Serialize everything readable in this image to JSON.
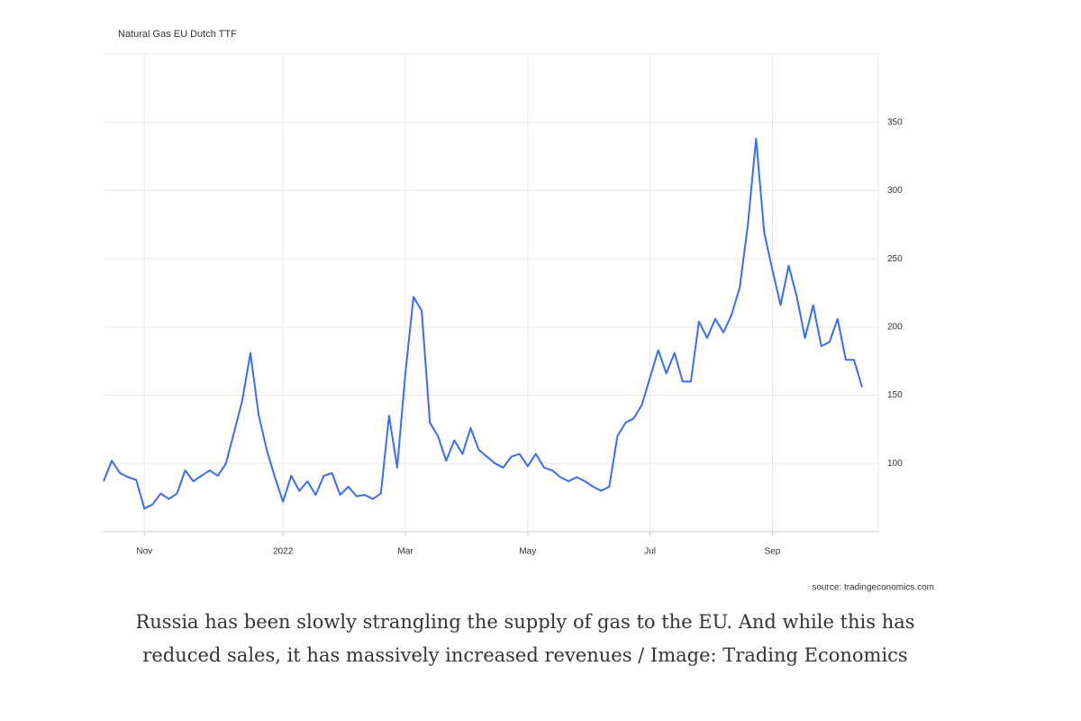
{
  "chart_data": {
    "type": "line",
    "title": "Natural Gas EU Dutch TTF",
    "source": "source: tradingeconomics.com",
    "categories": [
      null,
      null,
      null,
      null,
      null,
      "Nov",
      null,
      null,
      null,
      null,
      null,
      null,
      null,
      null,
      null,
      null,
      null,
      null,
      null,
      null,
      null,
      null,
      "2022",
      null,
      null,
      null,
      null,
      null,
      null,
      null,
      null,
      null,
      null,
      null,
      null,
      null,
      null,
      "Mar",
      null,
      null,
      null,
      null,
      null,
      null,
      null,
      null,
      null,
      null,
      null,
      null,
      null,
      null,
      "May",
      null,
      null,
      null,
      null,
      null,
      null,
      null,
      null,
      null,
      null,
      null,
      null,
      null,
      null,
      "Jul",
      null,
      null,
      null,
      null,
      null,
      null,
      null,
      null,
      null,
      null,
      null,
      null,
      null,
      null,
      "Sep",
      null,
      null,
      null,
      null,
      null,
      null,
      null,
      null,
      null,
      null,
      null
    ],
    "values": [
      87,
      102,
      93,
      90,
      88,
      67,
      70,
      78,
      74,
      78,
      95,
      87,
      91,
      95,
      91,
      100,
      123,
      146,
      181,
      136,
      110,
      90,
      72,
      91,
      80,
      87,
      77,
      91,
      93,
      77,
      83,
      76,
      77,
      74,
      78,
      135,
      97,
      166,
      222,
      212,
      130,
      120,
      102,
      117,
      107,
      126,
      110,
      105,
      100,
      97,
      105,
      107,
      98,
      107,
      97,
      95,
      90,
      87,
      90,
      87,
      83,
      80,
      83,
      120,
      130,
      133,
      143,
      163,
      183,
      166,
      181,
      160,
      160,
      204,
      192,
      206,
      196,
      209,
      229,
      275,
      338,
      269,
      242,
      216,
      245,
      222,
      192,
      216,
      186,
      189,
      206,
      176,
      176,
      156
    ],
    "color": "#3a6cf4",
    "ylim": [
      50,
      400
    ],
    "yticks": [
      100,
      150,
      200,
      250,
      300,
      350
    ],
    "grid": true
  },
  "caption": "Russia has been slowly strangling the supply of gas to the EU. And while this has reduced sales, it has massively increased revenues / Image: Trading Economics"
}
